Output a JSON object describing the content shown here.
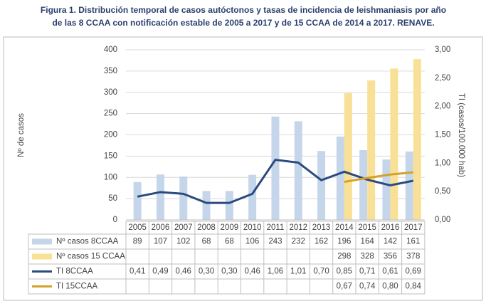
{
  "chart_data": {
    "type": "bar",
    "title": [
      "Figura 1.   Distribución temporal de casos autóctonos y tasas de incidencia de leishmaniasis por año",
      "de las 8 CCAA con notificación estable de 2005 a 2017 y de 15 CCAA de 2014 a 2017. RENAVE."
    ],
    "y_label": "Nº de casos",
    "y2_label": "TI (casos/100.000 hab)",
    "categories": [
      "2005",
      "2006",
      "2007",
      "2008",
      "2009",
      "2010",
      "2011",
      "2012",
      "2013",
      "2014",
      "2015",
      "2016",
      "2017"
    ],
    "ylim": [
      0,
      400
    ],
    "yticks": [
      0,
      50,
      100,
      150,
      200,
      250,
      300,
      350,
      400
    ],
    "y2lim": [
      0,
      3
    ],
    "y2ticks": [
      {
        "value": 0,
        "label": "0,00"
      },
      {
        "value": 0.5,
        "label": "0,50"
      },
      {
        "value": 1,
        "label": "1,00"
      },
      {
        "value": 1.5,
        "label": "1,50"
      },
      {
        "value": 2,
        "label": "2,00"
      },
      {
        "value": 2.5,
        "label": "2,50"
      },
      {
        "value": 3,
        "label": "3,00"
      }
    ],
    "grid": true,
    "series": [
      {
        "name": "Nº casos 8CCAA",
        "type": "bar",
        "color": "#c6d6ea",
        "values": [
          89,
          107,
          102,
          68,
          68,
          106,
          243,
          232,
          162,
          196,
          164,
          142,
          161
        ]
      },
      {
        "name": "Nº casos 15 CCAA",
        "type": "bar",
        "color": "#f8e196",
        "values": [
          null,
          null,
          null,
          null,
          null,
          null,
          null,
          null,
          null,
          298,
          328,
          356,
          378
        ]
      },
      {
        "name": "TI 8CCAA",
        "type": "line",
        "axis": "y2",
        "color": "#2b4a7e",
        "values": [
          0.41,
          0.49,
          0.46,
          0.3,
          0.3,
          0.46,
          1.06,
          1.01,
          0.7,
          0.85,
          0.71,
          0.61,
          0.69
        ],
        "value_labels": [
          "0,41",
          "0,49",
          "0,46",
          "0,30",
          "0,30",
          "0,46",
          "1,06",
          "1,01",
          "0,70",
          "0,85",
          "0,71",
          "0,61",
          "0,69"
        ]
      },
      {
        "name": "TI 15CCAA",
        "type": "line",
        "axis": "y2",
        "color": "#d4a12a",
        "values": [
          null,
          null,
          null,
          null,
          null,
          null,
          null,
          null,
          null,
          0.67,
          0.74,
          0.8,
          0.84
        ],
        "value_labels": [
          null,
          null,
          null,
          null,
          null,
          null,
          null,
          null,
          null,
          "0,67",
          "0,74",
          "0,80",
          "0,84"
        ]
      }
    ]
  }
}
